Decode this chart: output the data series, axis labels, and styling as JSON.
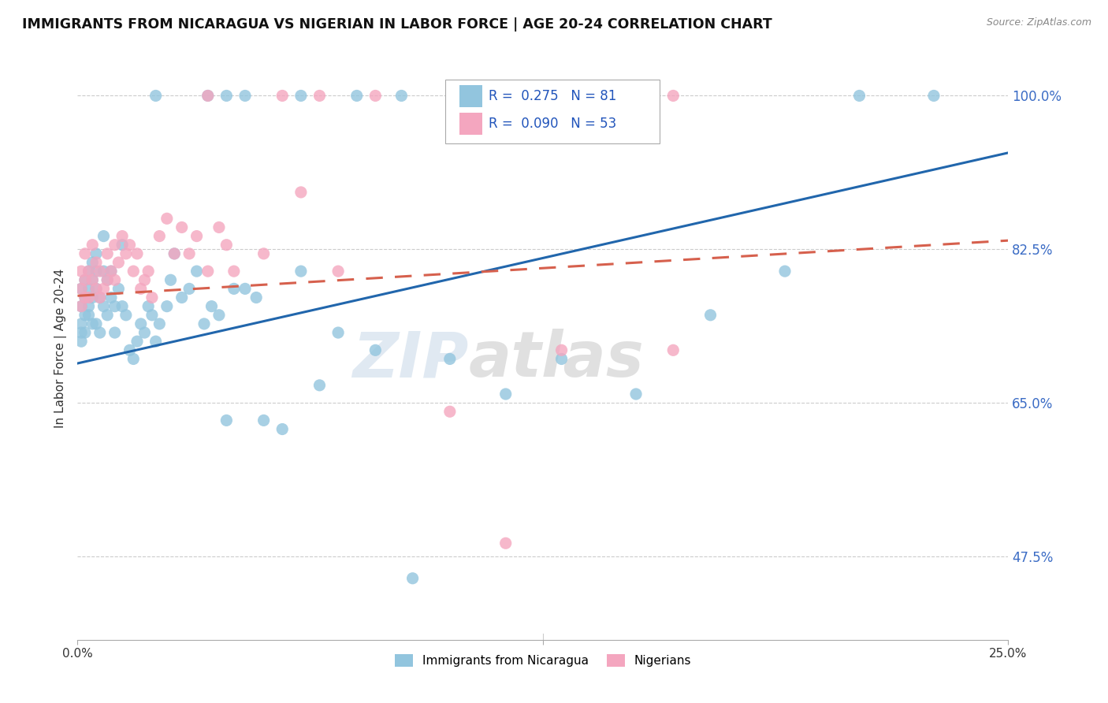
{
  "title": "IMMIGRANTS FROM NICARAGUA VS NIGERIAN IN LABOR FORCE | AGE 20-24 CORRELATION CHART",
  "source": "Source: ZipAtlas.com",
  "ylabel": "In Labor Force | Age 20-24",
  "ytick_vals": [
    0.475,
    0.65,
    0.825,
    1.0
  ],
  "ytick_labels": [
    "47.5%",
    "65.0%",
    "82.5%",
    "100.0%"
  ],
  "xmin": 0.0,
  "xmax": 0.25,
  "ymin": 0.38,
  "ymax": 1.045,
  "nicaragua_R": 0.275,
  "nicaragua_N": 81,
  "nigerian_R": 0.09,
  "nigerian_N": 53,
  "nicaragua_color": "#92c5de",
  "nigerian_color": "#f4a6bf",
  "nicaragua_line_color": "#2166ac",
  "nigerian_line_color": "#d6604d",
  "watermark_zip": "ZIP",
  "watermark_atlas": "atlas",
  "legend_label_nicaragua": "Immigrants from Nicaragua",
  "legend_label_nigerian": "Nigerians",
  "nic_trend_x0": 0.0,
  "nic_trend_x1": 0.25,
  "nic_trend_y0": 0.695,
  "nic_trend_y1": 0.935,
  "nig_trend_x0": 0.0,
  "nig_trend_x1": 0.25,
  "nig_trend_y0": 0.772,
  "nig_trend_y1": 0.835,
  "nicaragua_x": [
    0.001,
    0.001,
    0.001,
    0.001,
    0.001,
    0.002,
    0.002,
    0.002,
    0.002,
    0.003,
    0.003,
    0.003,
    0.003,
    0.004,
    0.004,
    0.004,
    0.004,
    0.005,
    0.005,
    0.005,
    0.005,
    0.006,
    0.006,
    0.007,
    0.007,
    0.007,
    0.008,
    0.008,
    0.009,
    0.009,
    0.01,
    0.01,
    0.011,
    0.012,
    0.012,
    0.013,
    0.014,
    0.015,
    0.016,
    0.017,
    0.018,
    0.019,
    0.02,
    0.021,
    0.022,
    0.024,
    0.025,
    0.026,
    0.028,
    0.03,
    0.032,
    0.034,
    0.036,
    0.038,
    0.04,
    0.042,
    0.045,
    0.048,
    0.05,
    0.055,
    0.06,
    0.065,
    0.07,
    0.08,
    0.09,
    0.1,
    0.115,
    0.13,
    0.15,
    0.17,
    0.19,
    0.21,
    0.23,
    0.021,
    0.035,
    0.04,
    0.045,
    0.06,
    0.075,
    0.087,
    0.12
  ],
  "nicaragua_y": [
    0.78,
    0.76,
    0.74,
    0.73,
    0.72,
    0.79,
    0.77,
    0.75,
    0.73,
    0.8,
    0.78,
    0.76,
    0.75,
    0.81,
    0.79,
    0.77,
    0.74,
    0.82,
    0.8,
    0.78,
    0.74,
    0.77,
    0.73,
    0.84,
    0.8,
    0.76,
    0.79,
    0.75,
    0.8,
    0.77,
    0.76,
    0.73,
    0.78,
    0.83,
    0.76,
    0.75,
    0.71,
    0.7,
    0.72,
    0.74,
    0.73,
    0.76,
    0.75,
    0.72,
    0.74,
    0.76,
    0.79,
    0.82,
    0.77,
    0.78,
    0.8,
    0.74,
    0.76,
    0.75,
    0.63,
    0.78,
    0.78,
    0.77,
    0.63,
    0.62,
    0.8,
    0.67,
    0.73,
    0.71,
    0.45,
    0.7,
    0.66,
    0.7,
    0.66,
    0.75,
    0.8,
    1.0,
    1.0,
    1.0,
    1.0,
    1.0,
    1.0,
    1.0,
    1.0,
    1.0,
    1.0
  ],
  "nigerian_x": [
    0.001,
    0.001,
    0.001,
    0.002,
    0.002,
    0.002,
    0.003,
    0.003,
    0.004,
    0.004,
    0.005,
    0.005,
    0.006,
    0.006,
    0.007,
    0.008,
    0.008,
    0.009,
    0.01,
    0.01,
    0.011,
    0.012,
    0.013,
    0.014,
    0.015,
    0.016,
    0.017,
    0.018,
    0.019,
    0.02,
    0.022,
    0.024,
    0.026,
    0.028,
    0.03,
    0.032,
    0.035,
    0.038,
    0.04,
    0.042,
    0.05,
    0.06,
    0.07,
    0.13,
    0.16,
    0.035,
    0.055,
    0.065,
    0.08,
    0.13,
    0.16,
    0.1,
    0.115
  ],
  "nigerian_y": [
    0.8,
    0.78,
    0.76,
    0.82,
    0.79,
    0.77,
    0.8,
    0.77,
    0.83,
    0.79,
    0.81,
    0.78,
    0.8,
    0.77,
    0.78,
    0.82,
    0.79,
    0.8,
    0.83,
    0.79,
    0.81,
    0.84,
    0.82,
    0.83,
    0.8,
    0.82,
    0.78,
    0.79,
    0.8,
    0.77,
    0.84,
    0.86,
    0.82,
    0.85,
    0.82,
    0.84,
    0.8,
    0.85,
    0.83,
    0.8,
    0.82,
    0.89,
    0.8,
    0.71,
    0.71,
    1.0,
    1.0,
    1.0,
    1.0,
    1.0,
    1.0,
    0.64,
    0.49
  ]
}
